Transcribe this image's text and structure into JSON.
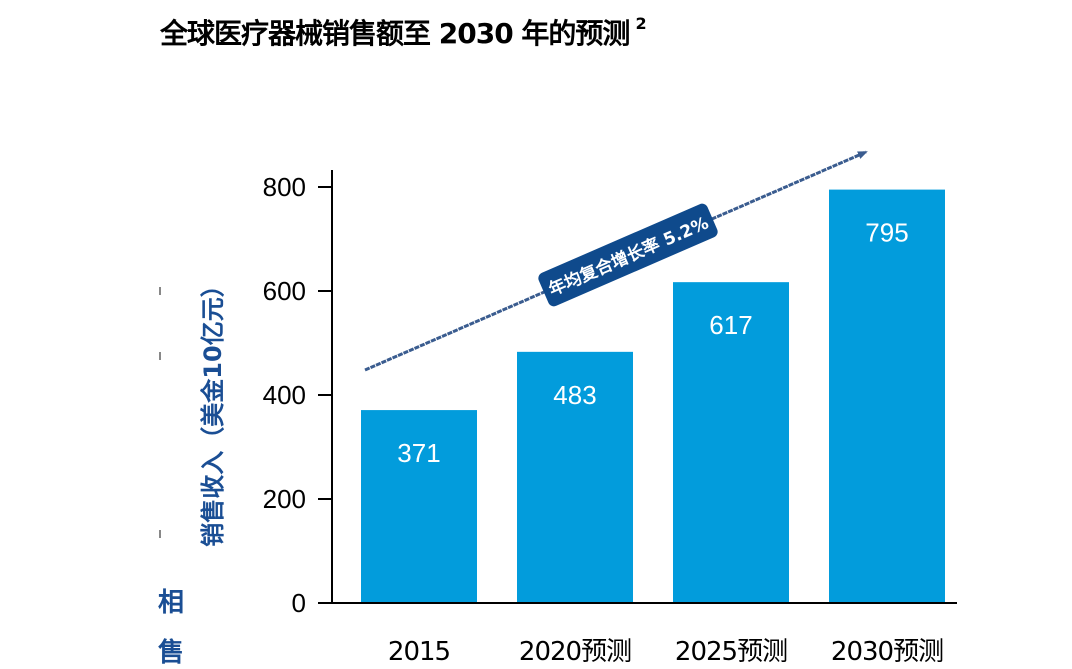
{
  "title": "全球医疗器械销售额至 2030 年的预测",
  "title_superscript": "2",
  "left_fragments": [
    "相",
    "售"
  ],
  "chart_data": {
    "type": "bar",
    "categories": [
      "2015",
      "2020预测",
      "2025预测",
      "2030预测"
    ],
    "values": [
      371,
      483,
      617,
      795
    ],
    "data_labels": [
      "371",
      "483",
      "617",
      "795"
    ],
    "ylabel": "销售收入（美金10亿元）",
    "ylim": [
      0,
      800
    ],
    "yticks": [
      "0",
      "200",
      "400",
      "600",
      "800"
    ],
    "grid": false,
    "bar_color": "#029cdc",
    "annotation": {
      "text": "年均复合增长率 5.2%",
      "arrow_color": "#3a5c8f",
      "label_bg": "#0f4a8c"
    }
  }
}
